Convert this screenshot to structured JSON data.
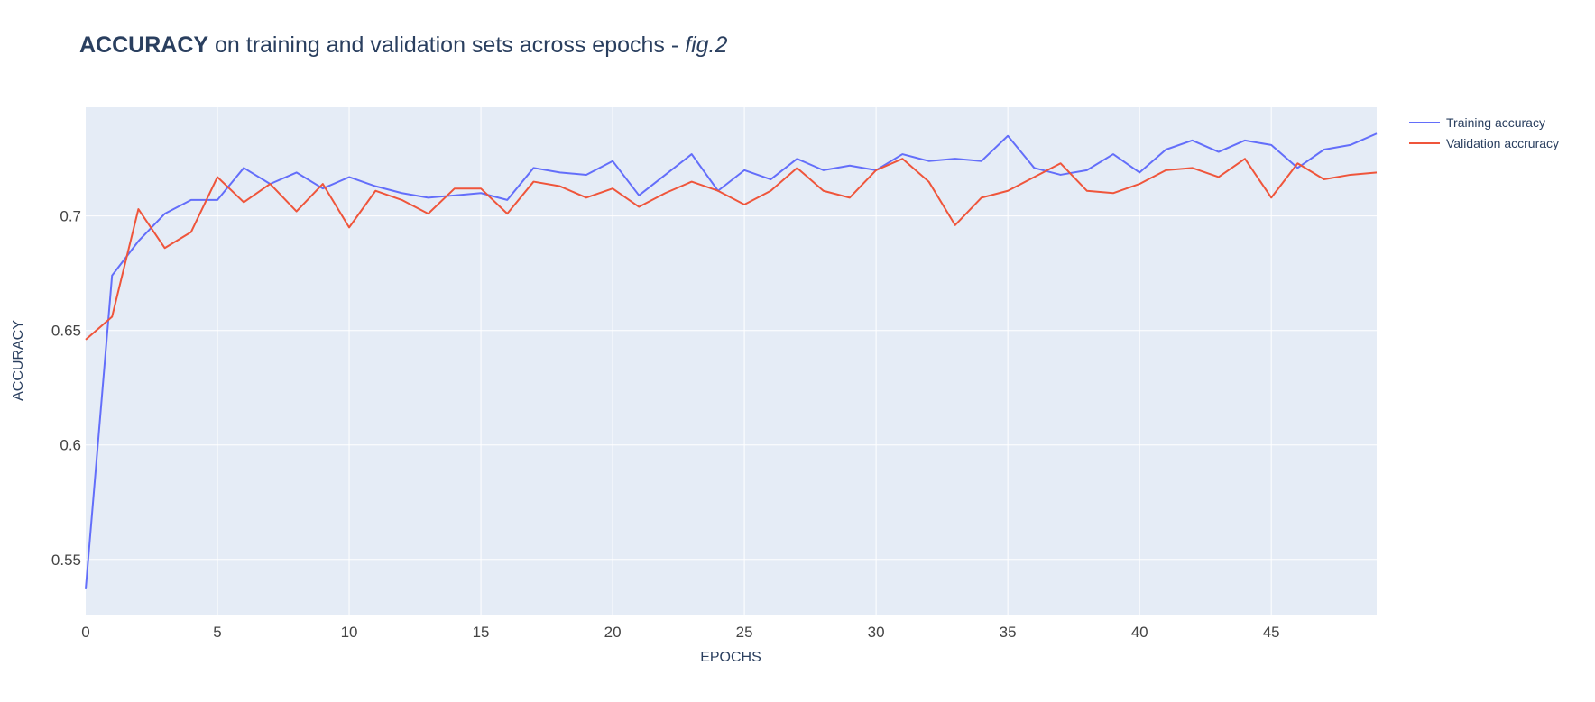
{
  "chart_data": {
    "type": "line",
    "title": {
      "bold": "ACCURACY",
      "regular": " on training and validation sets across epochs - ",
      "italic": "fig.2"
    },
    "xlabel": "EPOCHS",
    "ylabel": "ACCURACY",
    "xlim": [
      0,
      49
    ],
    "ylim": [
      0.5255,
      0.7475
    ],
    "xticks": [
      0,
      5,
      10,
      15,
      20,
      25,
      30,
      35,
      40,
      45
    ],
    "yticks": [
      0.55,
      0.6,
      0.65,
      0.7
    ],
    "ytick_labels": [
      "0.55",
      "0.6",
      "0.65",
      "0.7"
    ],
    "grid": true,
    "legend_position": "top-right",
    "x": [
      0,
      1,
      2,
      3,
      4,
      5,
      6,
      7,
      8,
      9,
      10,
      11,
      12,
      13,
      14,
      15,
      16,
      17,
      18,
      19,
      20,
      21,
      22,
      23,
      24,
      25,
      26,
      27,
      28,
      29,
      30,
      31,
      32,
      33,
      34,
      35,
      36,
      37,
      38,
      39,
      40,
      41,
      42,
      43,
      44,
      45,
      46,
      47,
      48,
      49
    ],
    "series": [
      {
        "name": "Training accuracy",
        "color": "#636efa",
        "values": [
          0.537,
          0.674,
          0.689,
          0.701,
          0.707,
          0.707,
          0.721,
          0.714,
          0.719,
          0.712,
          0.717,
          0.713,
          0.71,
          0.708,
          0.709,
          0.71,
          0.707,
          0.721,
          0.719,
          0.718,
          0.724,
          0.709,
          0.718,
          0.727,
          0.711,
          0.72,
          0.716,
          0.725,
          0.72,
          0.722,
          0.72,
          0.727,
          0.724,
          0.725,
          0.724,
          0.735,
          0.721,
          0.718,
          0.72,
          0.727,
          0.719,
          0.729,
          0.733,
          0.728,
          0.733,
          0.731,
          0.721,
          0.729,
          0.731,
          0.736
        ]
      },
      {
        "name": "Validation accruracy",
        "color": "#ef553b",
        "values": [
          0.646,
          0.656,
          0.703,
          0.686,
          0.693,
          0.717,
          0.706,
          0.714,
          0.702,
          0.714,
          0.695,
          0.711,
          0.707,
          0.701,
          0.712,
          0.712,
          0.701,
          0.715,
          0.713,
          0.708,
          0.712,
          0.704,
          0.71,
          0.715,
          0.711,
          0.705,
          0.711,
          0.721,
          0.711,
          0.708,
          0.72,
          0.725,
          0.715,
          0.696,
          0.708,
          0.711,
          0.717,
          0.723,
          0.711,
          0.71,
          0.714,
          0.72,
          0.721,
          0.717,
          0.725,
          0.708,
          0.723,
          0.716,
          0.718,
          0.719
        ]
      }
    ]
  }
}
